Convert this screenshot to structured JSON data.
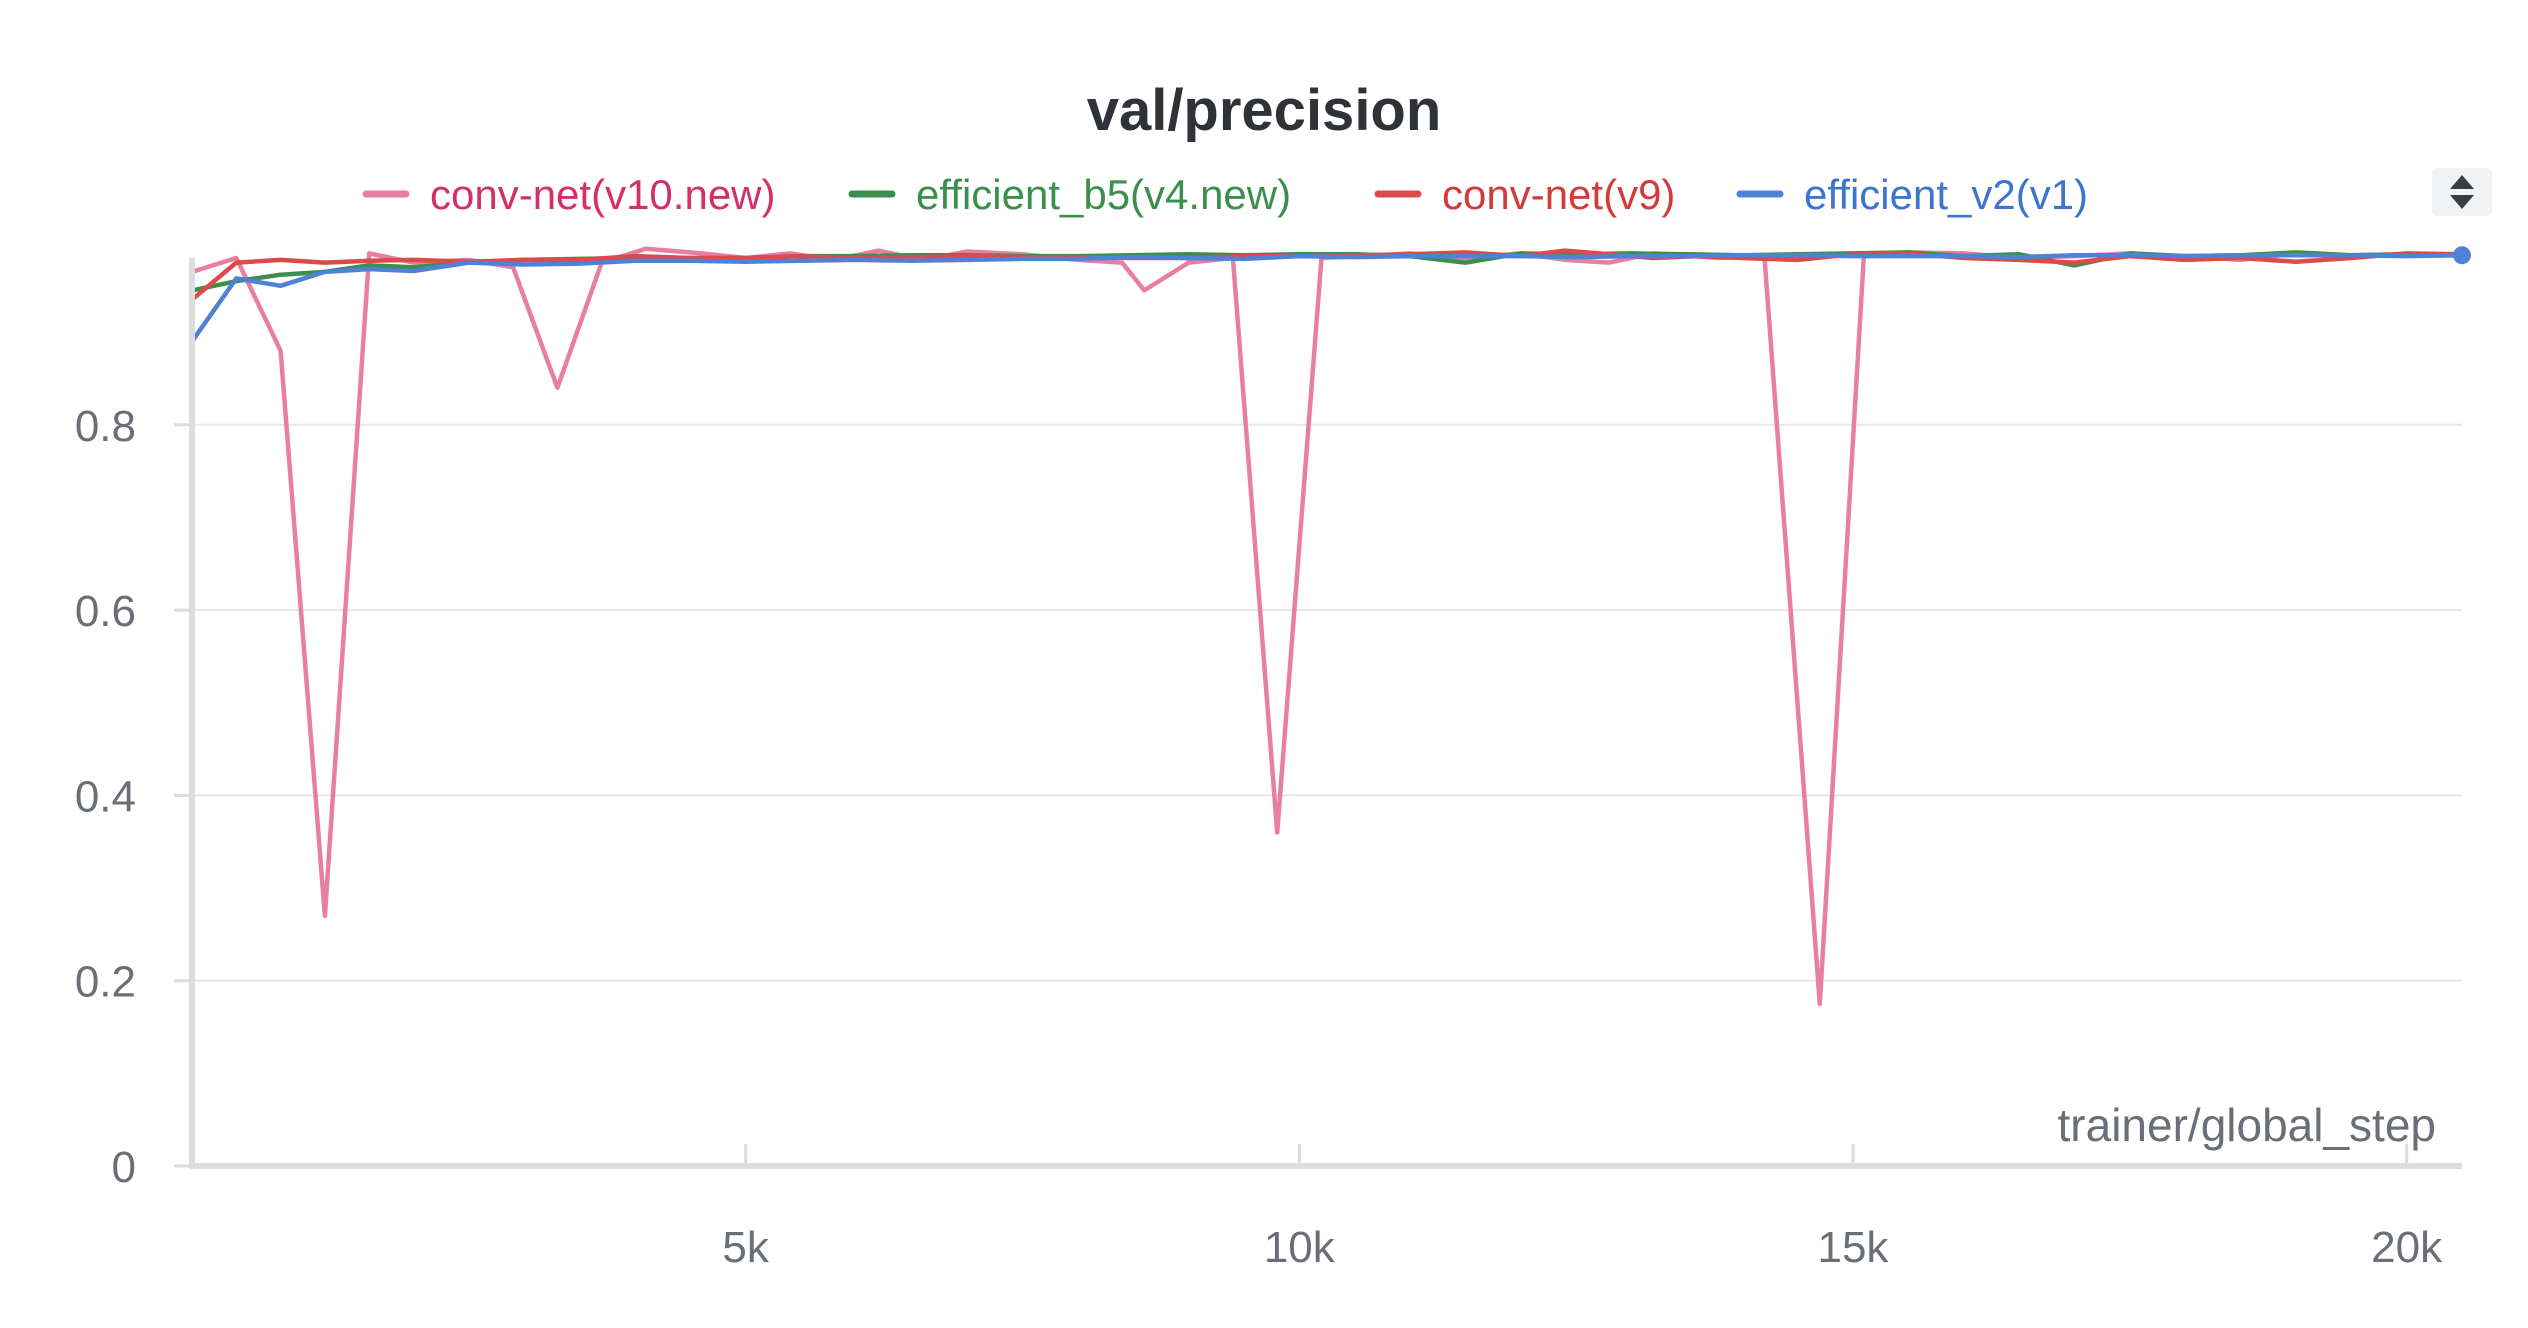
{
  "chart_data": {
    "type": "line",
    "title": "val/precision",
    "xlabel": "trainer/global_step",
    "ylabel": "",
    "xlim": [
      0,
      20500
    ],
    "ylim": [
      0,
      0.98
    ],
    "xticks": [
      5000,
      10000,
      15000,
      20000
    ],
    "xtick_labels": [
      "5k",
      "10k",
      "15k",
      "20k"
    ],
    "yticks": [
      0,
      0.2,
      0.4,
      0.6,
      0.8
    ],
    "ytick_labels": [
      "0",
      "0.2",
      "0.4",
      "0.6",
      "0.8"
    ],
    "grid": true,
    "legend_position": "top",
    "series": [
      {
        "name": "conv-net(v10.new)",
        "color": "#e87ea1",
        "text_color": "#d42f6a",
        "points": [
          [
            0,
            0.965
          ],
          [
            400,
            0.98
          ],
          [
            800,
            0.88
          ],
          [
            1200,
            0.27
          ],
          [
            1600,
            0.985
          ],
          [
            2000,
            0.975
          ],
          [
            2500,
            0.978
          ],
          [
            2900,
            0.97
          ],
          [
            3300,
            0.84
          ],
          [
            3700,
            0.975
          ],
          [
            4100,
            0.99
          ],
          [
            4600,
            0.985
          ],
          [
            5000,
            0.98
          ],
          [
            5400,
            0.985
          ],
          [
            5800,
            0.978
          ],
          [
            6200,
            0.988
          ],
          [
            6600,
            0.978
          ],
          [
            7000,
            0.987
          ],
          [
            7500,
            0.984
          ],
          [
            8000,
            0.978
          ],
          [
            8400,
            0.975
          ],
          [
            8600,
            0.945
          ],
          [
            9000,
            0.975
          ],
          [
            9400,
            0.98
          ],
          [
            9800,
            0.36
          ],
          [
            10200,
            0.98
          ],
          [
            10600,
            0.982
          ],
          [
            11000,
            0.985
          ],
          [
            11500,
            0.98
          ],
          [
            12000,
            0.985
          ],
          [
            12400,
            0.978
          ],
          [
            12800,
            0.975
          ],
          [
            13200,
            0.985
          ],
          [
            13800,
            0.98
          ],
          [
            14200,
            0.982
          ],
          [
            14700,
            0.175
          ],
          [
            15100,
            0.985
          ],
          [
            15500,
            0.986
          ],
          [
            16000,
            0.985
          ],
          [
            16500,
            0.98
          ],
          [
            17000,
            0.982
          ],
          [
            17500,
            0.985
          ],
          [
            18000,
            0.982
          ],
          [
            18500,
            0.978
          ],
          [
            19000,
            0.985
          ],
          [
            19500,
            0.983
          ],
          [
            20000,
            0.984
          ],
          [
            20500,
            0.983
          ]
        ]
      },
      {
        "name": "efficient_b5(v4.new)",
        "color": "#3a8f4d",
        "text_color": "#3a8f4d",
        "points": [
          [
            0,
            0.945
          ],
          [
            400,
            0.955
          ],
          [
            800,
            0.962
          ],
          [
            1200,
            0.965
          ],
          [
            1600,
            0.972
          ],
          [
            2000,
            0.97
          ],
          [
            2500,
            0.975
          ],
          [
            3000,
            0.978
          ],
          [
            3500,
            0.979
          ],
          [
            4000,
            0.98
          ],
          [
            4500,
            0.98
          ],
          [
            5000,
            0.98
          ],
          [
            5500,
            0.982
          ],
          [
            6000,
            0.982
          ],
          [
            6500,
            0.983
          ],
          [
            7000,
            0.983
          ],
          [
            7500,
            0.982
          ],
          [
            8000,
            0.982
          ],
          [
            8500,
            0.983
          ],
          [
            9000,
            0.984
          ],
          [
            9500,
            0.983
          ],
          [
            10000,
            0.984
          ],
          [
            10500,
            0.984
          ],
          [
            11000,
            0.982
          ],
          [
            11500,
            0.975
          ],
          [
            12000,
            0.985
          ],
          [
            12500,
            0.984
          ],
          [
            13000,
            0.985
          ],
          [
            13500,
            0.984
          ],
          [
            14000,
            0.983
          ],
          [
            14500,
            0.984
          ],
          [
            15000,
            0.985
          ],
          [
            15500,
            0.986
          ],
          [
            16000,
            0.982
          ],
          [
            16500,
            0.984
          ],
          [
            17000,
            0.972
          ],
          [
            17500,
            0.985
          ],
          [
            18000,
            0.982
          ],
          [
            18500,
            0.983
          ],
          [
            19000,
            0.986
          ],
          [
            19500,
            0.983
          ],
          [
            20000,
            0.984
          ],
          [
            20500,
            0.984
          ]
        ]
      },
      {
        "name": "conv-net(v9)",
        "color": "#dc4a4a",
        "text_color": "#d33a3a",
        "points": [
          [
            0,
            0.935
          ],
          [
            400,
            0.975
          ],
          [
            800,
            0.978
          ],
          [
            1200,
            0.975
          ],
          [
            1600,
            0.977
          ],
          [
            2000,
            0.978
          ],
          [
            2500,
            0.976
          ],
          [
            3000,
            0.978
          ],
          [
            3500,
            0.978
          ],
          [
            4000,
            0.982
          ],
          [
            4500,
            0.98
          ],
          [
            5000,
            0.98
          ],
          [
            5500,
            0.982
          ],
          [
            6000,
            0.98
          ],
          [
            6500,
            0.981
          ],
          [
            7000,
            0.982
          ],
          [
            7500,
            0.981
          ],
          [
            8000,
            0.981
          ],
          [
            8500,
            0.98
          ],
          [
            9000,
            0.98
          ],
          [
            9500,
            0.982
          ],
          [
            10000,
            0.982
          ],
          [
            10500,
            0.983
          ],
          [
            11000,
            0.984
          ],
          [
            11500,
            0.986
          ],
          [
            12000,
            0.982
          ],
          [
            12400,
            0.988
          ],
          [
            12800,
            0.984
          ],
          [
            13200,
            0.98
          ],
          [
            13600,
            0.982
          ],
          [
            14000,
            0.98
          ],
          [
            14500,
            0.978
          ],
          [
            15000,
            0.984
          ],
          [
            15500,
            0.985
          ],
          [
            16000,
            0.98
          ],
          [
            16500,
            0.978
          ],
          [
            17000,
            0.975
          ],
          [
            17500,
            0.982
          ],
          [
            18000,
            0.978
          ],
          [
            18500,
            0.98
          ],
          [
            19000,
            0.976
          ],
          [
            19500,
            0.98
          ],
          [
            20000,
            0.985
          ],
          [
            20500,
            0.984
          ]
        ]
      },
      {
        "name": "efficient_v2(v1)",
        "color": "#4f82d6",
        "text_color": "#3c74cf",
        "points": [
          [
            0,
            0.89
          ],
          [
            400,
            0.958
          ],
          [
            800,
            0.95
          ],
          [
            1200,
            0.965
          ],
          [
            1600,
            0.968
          ],
          [
            2000,
            0.966
          ],
          [
            2500,
            0.975
          ],
          [
            3000,
            0.973
          ],
          [
            3500,
            0.974
          ],
          [
            4000,
            0.977
          ],
          [
            4500,
            0.977
          ],
          [
            5000,
            0.976
          ],
          [
            5500,
            0.977
          ],
          [
            6000,
            0.978
          ],
          [
            6500,
            0.977
          ],
          [
            7000,
            0.978
          ],
          [
            7500,
            0.979
          ],
          [
            8000,
            0.979
          ],
          [
            8500,
            0.981
          ],
          [
            9000,
            0.98
          ],
          [
            9500,
            0.979
          ],
          [
            10000,
            0.982
          ],
          [
            10500,
            0.981
          ],
          [
            11000,
            0.982
          ],
          [
            11500,
            0.982
          ],
          [
            12000,
            0.982
          ],
          [
            12500,
            0.981
          ],
          [
            13000,
            0.982
          ],
          [
            13500,
            0.982
          ],
          [
            14000,
            0.983
          ],
          [
            14500,
            0.983
          ],
          [
            15000,
            0.982
          ],
          [
            15500,
            0.982
          ],
          [
            16000,
            0.982
          ],
          [
            16500,
            0.981
          ],
          [
            17000,
            0.983
          ],
          [
            17500,
            0.983
          ],
          [
            18000,
            0.982
          ],
          [
            18500,
            0.983
          ],
          [
            19000,
            0.983
          ],
          [
            19500,
            0.983
          ],
          [
            20000,
            0.982
          ],
          [
            20500,
            0.983
          ]
        ]
      }
    ]
  }
}
